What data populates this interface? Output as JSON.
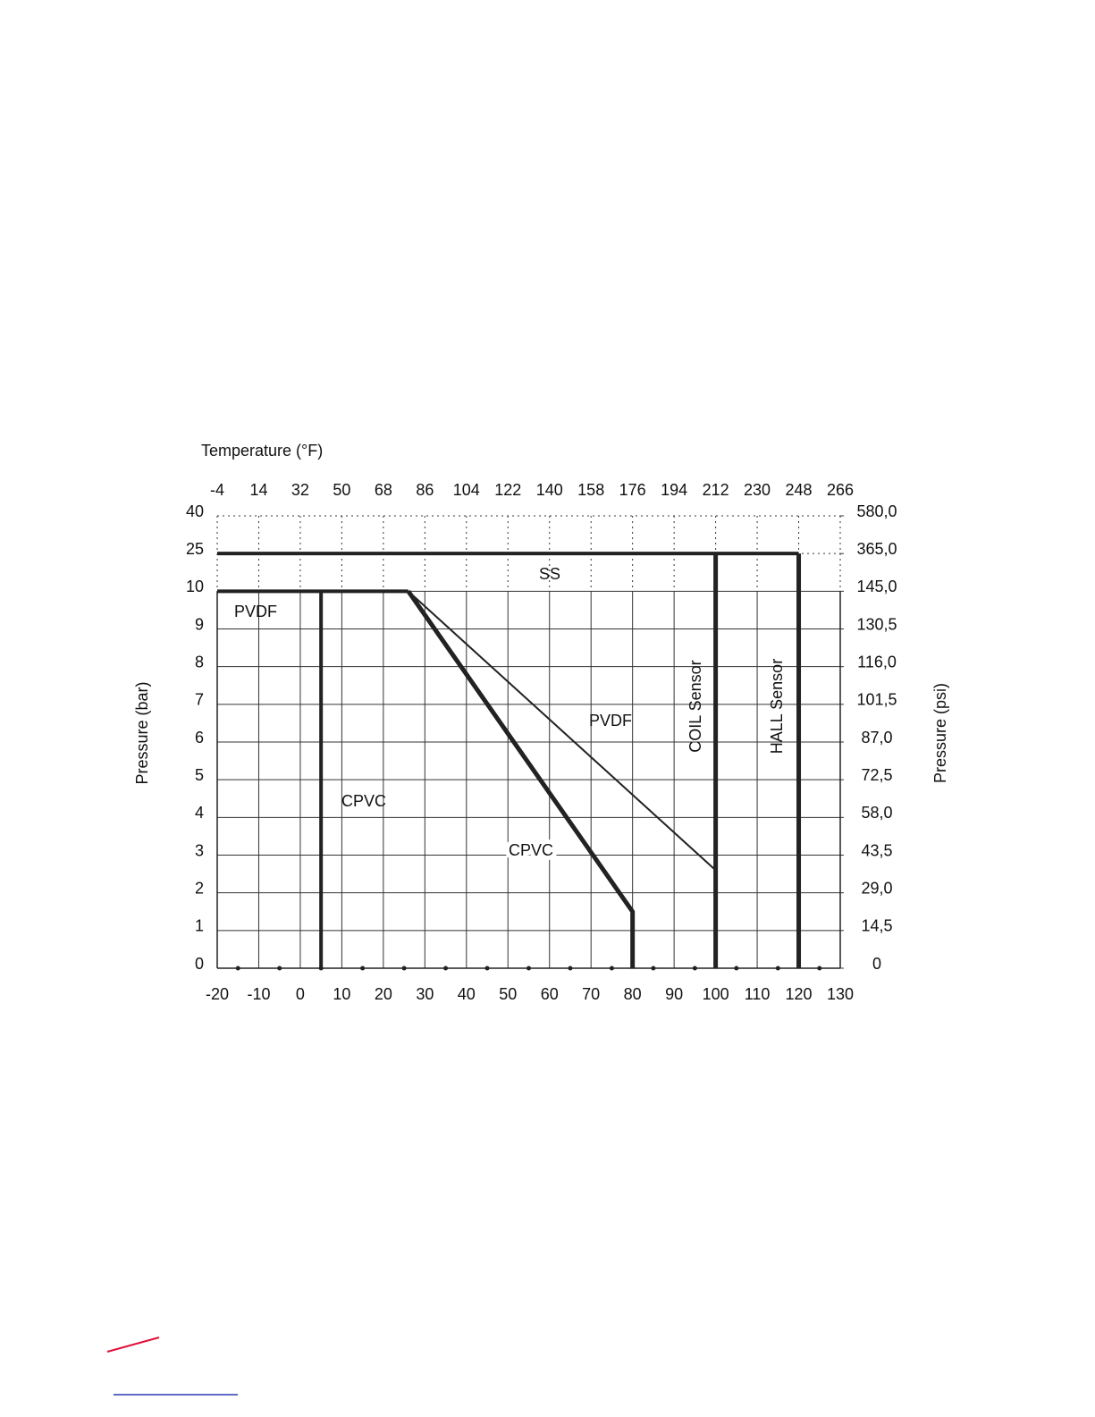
{
  "chart_data": {
    "type": "line",
    "x2label": "Temperature (°F)",
    "ylabel": "Pressure (bar)",
    "y2label": "Pressure (psi)",
    "xlim": [
      -20,
      130
    ],
    "xticks": [
      -20,
      -10,
      0,
      10,
      20,
      30,
      40,
      50,
      60,
      70,
      80,
      90,
      100,
      110,
      120,
      130
    ],
    "x2lim": [
      -4,
      266
    ],
    "x2ticks": [
      -4,
      14,
      32,
      50,
      68,
      86,
      104,
      122,
      140,
      158,
      176,
      194,
      212,
      230,
      248,
      266
    ],
    "ylim": [
      0,
      40
    ],
    "yticks": [
      0,
      1,
      2,
      3,
      4,
      5,
      6,
      7,
      8,
      9,
      10,
      25,
      40
    ],
    "y2lim": [
      0,
      580
    ],
    "y2ticks": [
      0,
      {
        "value": 14.5,
        "label": "14,5"
      },
      {
        "value": 29,
        "label": "29,0"
      },
      {
        "value": 43.5,
        "label": "43,5"
      },
      {
        "value": 58,
        "label": "58,0"
      },
      {
        "value": 72.5,
        "label": "72,5"
      },
      {
        "value": 87,
        "label": "87,0"
      },
      {
        "value": 101.5,
        "label": "101,5"
      },
      {
        "value": 116,
        "label": "116,0"
      },
      {
        "value": 130.5,
        "label": "130,5"
      },
      {
        "value": 145,
        "label": "145,0"
      },
      {
        "value": 365,
        "label": "365,0"
      },
      {
        "value": 580,
        "label": "580,0"
      }
    ],
    "grid": true,
    "series": [
      {
        "name": "SS",
        "color": "#222222",
        "linewidth": 4,
        "x": [
          -20,
          120
        ],
        "values": [
          25,
          25
        ]
      },
      {
        "name": "PVDF",
        "color": "#222222",
        "linewidth": 4,
        "x": [
          -20,
          26
        ],
        "values": [
          10,
          10
        ]
      },
      {
        "name": "CPVC",
        "color": "#222222",
        "linewidth": 4,
        "x": [
          5,
          5
        ],
        "values": [
          10,
          0
        ]
      },
      {
        "name": "PVDF",
        "color": "#222222",
        "linewidth": 2,
        "x": [
          26,
          100
        ],
        "values": [
          10,
          2.6
        ]
      },
      {
        "name": "CPVC",
        "color": "#222222",
        "linewidth": 5,
        "x": [
          26,
          80,
          80
        ],
        "values": [
          10,
          1.5,
          0
        ]
      },
      {
        "name": "COIL Sensor",
        "color": "#222222",
        "linewidth": 5,
        "x": [
          100,
          100
        ],
        "values": [
          25,
          0
        ]
      },
      {
        "name": "HALL Sensor",
        "color": "#222222",
        "linewidth": 5,
        "x": [
          120,
          120
        ],
        "values": [
          25,
          0
        ]
      }
    ]
  }
}
